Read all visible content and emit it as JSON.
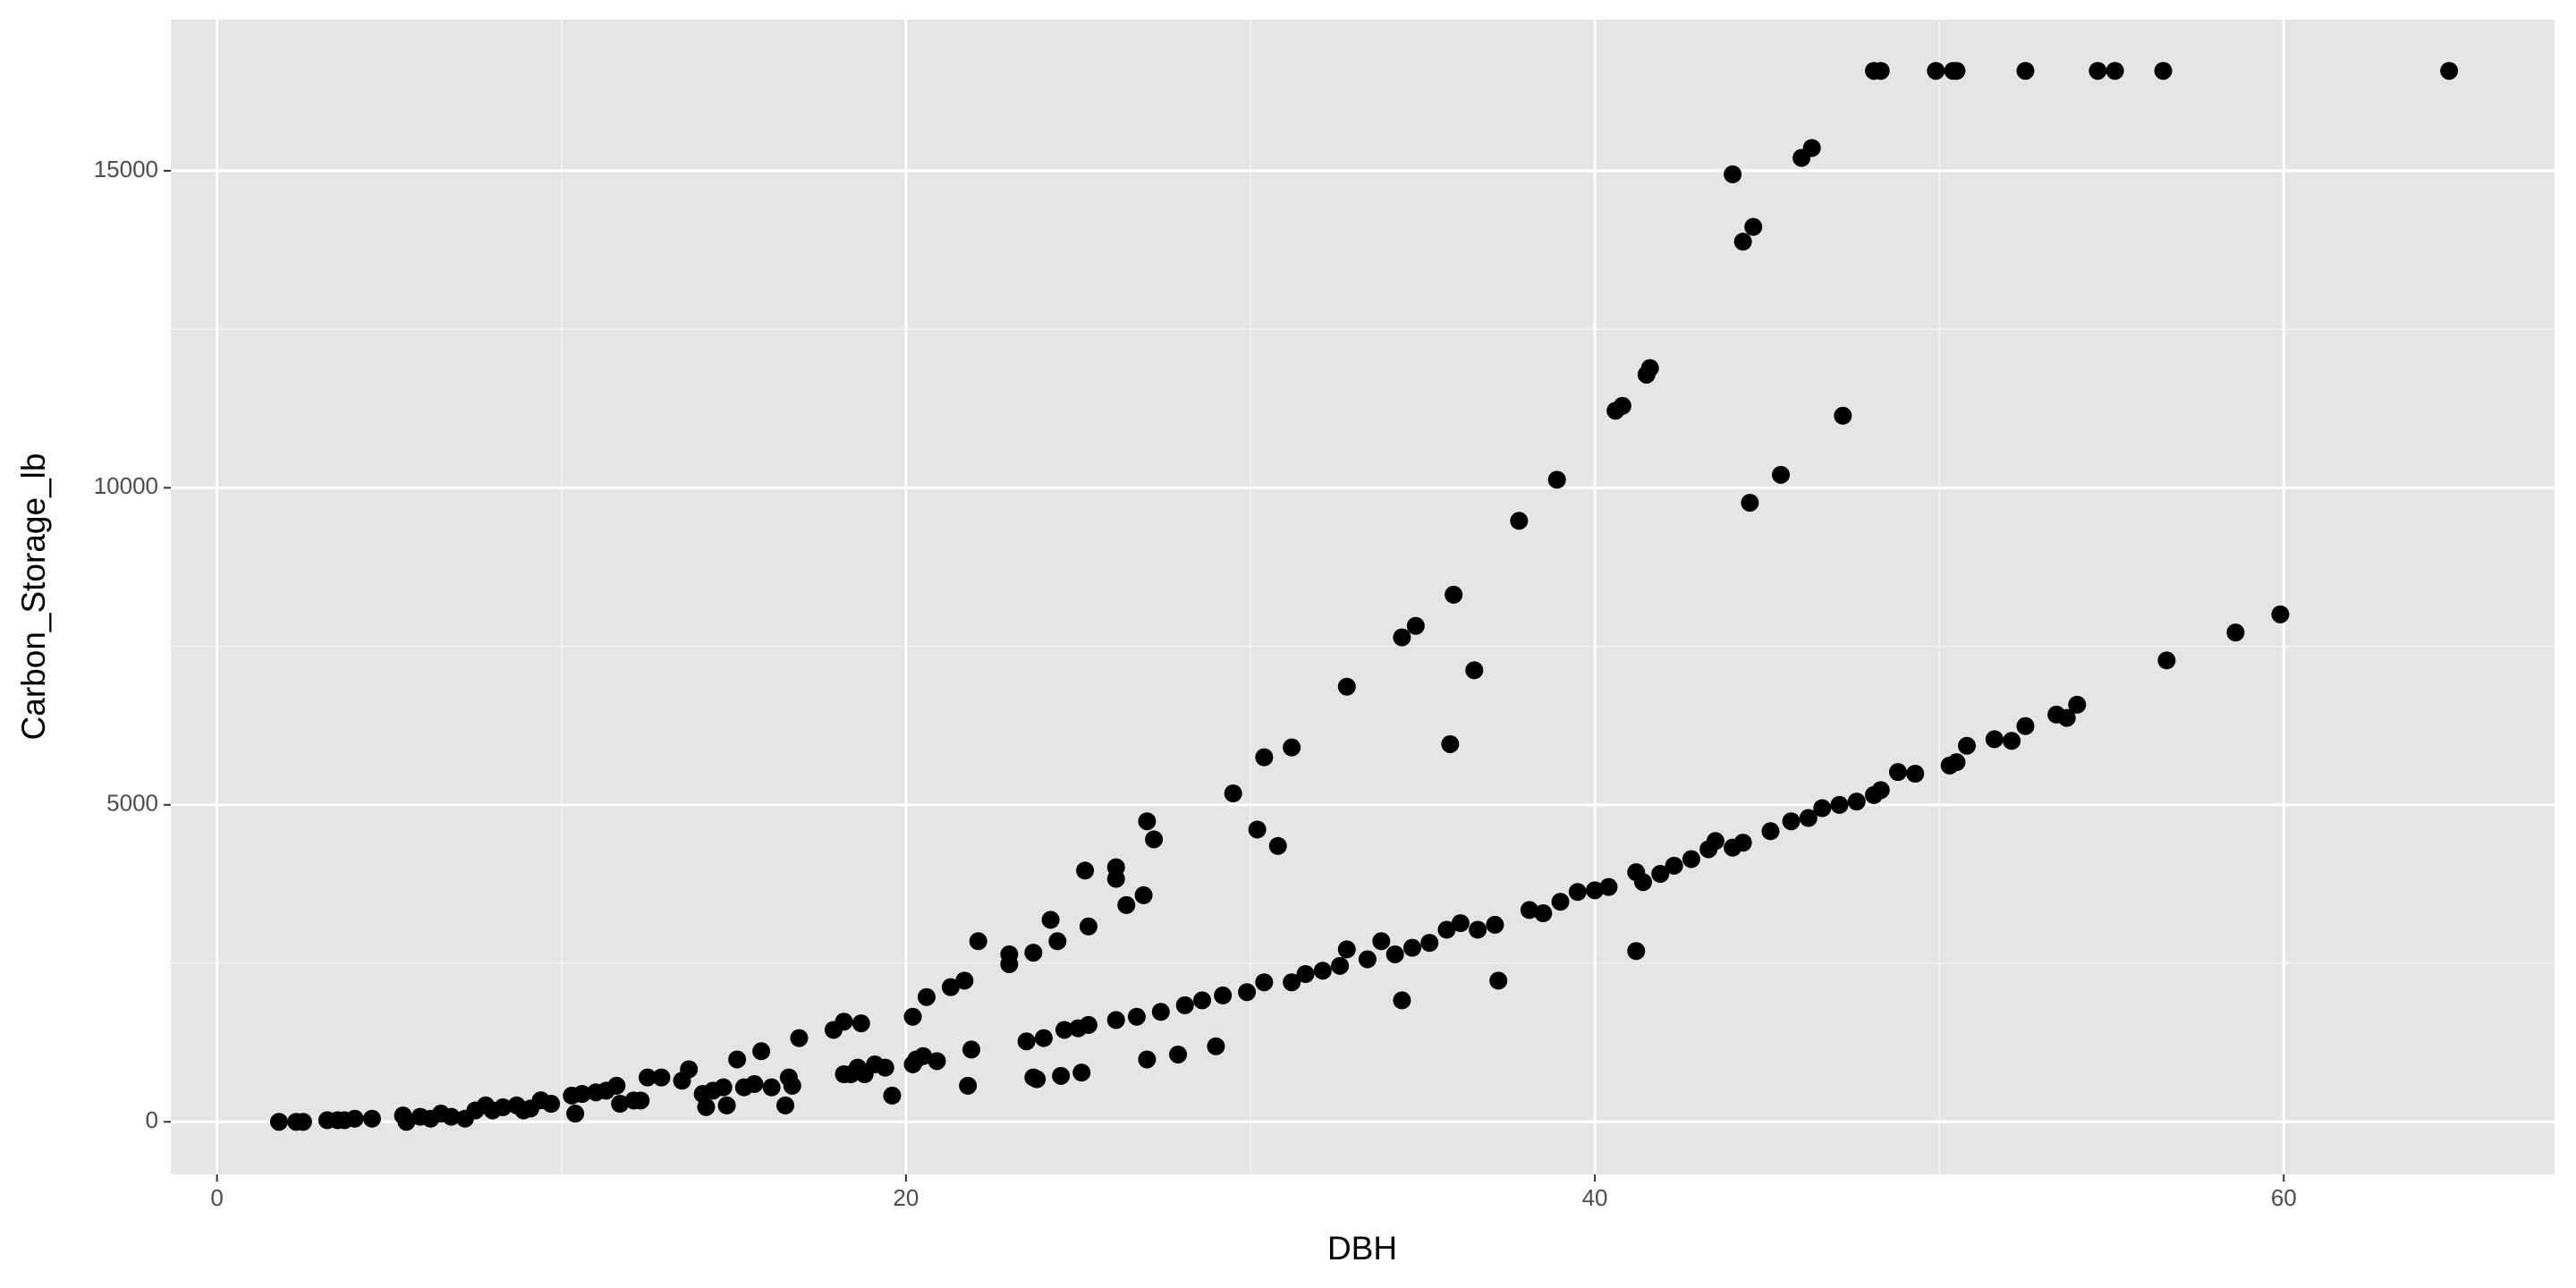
{
  "chart_data": {
    "type": "scatter",
    "x_label": "DBH",
    "y_label": "Carbon_Storage_lb",
    "x": [
      1.8,
      2.3,
      2.5,
      3.2,
      3.5,
      3.7,
      4.0,
      4.5,
      5.4,
      5.5,
      5.9,
      6.2,
      6.5,
      6.8,
      7.2,
      7.5,
      7.8,
      8.0,
      8.3,
      8.7,
      8.9,
      9.1,
      9.4,
      9.7,
      10.3,
      10.4,
      10.6,
      11.0,
      11.3,
      11.6,
      11.7,
      12.1,
      12.3,
      12.5,
      12.9,
      13.5,
      13.7,
      14.1,
      14.2,
      14.4,
      14.7,
      14.8,
      15.1,
      15.3,
      15.6,
      15.8,
      16.1,
      16.5,
      16.6,
      16.7,
      16.9,
      17.9,
      18.2,
      18.2,
      18.4,
      18.6,
      18.7,
      18.8,
      19.1,
      19.4,
      19.6,
      20.2,
      20.2,
      20.3,
      20.5,
      20.6,
      20.9,
      21.3,
      21.7,
      21.8,
      21.9,
      22.1,
      23.0,
      23.0,
      23.5,
      23.7,
      23.7,
      23.8,
      24.0,
      24.2,
      24.4,
      24.5,
      24.6,
      25.0,
      25.1,
      25.2,
      25.3,
      25.3,
      26.1,
      26.1,
      26.1,
      26.4,
      26.7,
      26.9,
      27.0,
      27.0,
      27.2,
      27.4,
      27.9,
      28.1,
      28.6,
      29.0,
      29.2,
      29.5,
      29.9,
      30.2,
      30.4,
      30.4,
      30.8,
      31.2,
      31.2,
      31.6,
      32.1,
      32.6,
      32.8,
      32.8,
      33.4,
      33.8,
      34.2,
      34.4,
      34.4,
      34.7,
      34.8,
      35.2,
      35.7,
      35.8,
      35.9,
      36.1,
      36.5,
      36.6,
      37.1,
      37.2,
      37.8,
      38.1,
      38.5,
      38.9,
      39.0,
      39.5,
      40.0,
      40.4,
      40.6,
      40.8,
      41.2,
      41.2,
      41.4,
      41.5,
      41.6,
      41.9,
      42.3,
      42.8,
      43.3,
      43.5,
      44.0,
      44.0,
      44.3,
      44.3,
      44.6,
      44.5,
      45.1,
      45.4,
      45.7,
      46.0,
      46.3,
      46.2,
      46.6,
      47.1,
      47.2,
      47.6,
      48.1,
      48.3,
      48.1,
      48.3,
      48.8,
      49.3,
      49.9,
      50.4,
      50.5,
      50.3,
      50.5,
      50.8,
      51.6,
      52.1,
      52.5,
      52.5,
      53.4,
      53.7,
      54.0,
      54.6,
      55.1,
      56.5,
      56.6,
      58.6,
      59.9,
      64.8
    ],
    "y": [
      0,
      0,
      0,
      26,
      26,
      26,
      50,
      50,
      100,
      0,
      80,
      50,
      130,
      80,
      50,
      180,
      260,
      180,
      230,
      260,
      180,
      210,
      340,
      285,
      414,
      130,
      440,
      466,
      492,
      570,
      285,
      337,
      337,
      700,
      700,
      648,
      829,
      440,
      233,
      492,
      544,
      259,
      984,
      544,
      596,
      1114,
      544,
      259,
      700,
      570,
      1321,
      1450,
      1580,
      751,
      751,
      855,
      1554,
      751,
      907,
      855,
      414,
      907,
      1658,
      984,
      1036,
      1968,
      958,
      2124,
      2227,
      570,
      1140,
      2849,
      2642,
      2486,
      1269,
      700,
      2668,
      673,
      1321,
      3186,
      2849,
      725,
      1450,
      1476,
      777,
      3963,
      3082,
      1528,
      4015,
      3833,
      1606,
      3419,
      1658,
      3574,
      984,
      4740,
      4455,
      1735,
      1062,
      1839,
      1916,
      1191,
      1994,
      5180,
      2046,
      4610,
      2201,
      5750,
      4351,
      5905,
      2201,
      2331,
      2383,
      2460,
      6863,
      2720,
      2564,
      2849,
      2642,
      7641,
      1916,
      2745,
      7822,
      2823,
      3030,
      5957,
      8314,
      3134,
      7122,
      3030,
      3108,
      2227,
      9479,
      3341,
      3290,
      10127,
      3471,
      3626,
      3652,
      3704,
      11215,
      11292,
      2694,
      3937,
      3781,
      11785,
      11888,
      3911,
      4040,
      4144,
      4299,
      4429,
      14944,
      4325,
      4403,
      13882,
      14115,
      9764,
      4584,
      10205,
      4740,
      15203,
      15359,
      4792,
      4947,
      4999,
      11137,
      5051,
      5154,
      5232,
      16576,
      16576,
      5517,
      5491,
      16576,
      16576,
      16576,
      5620,
      5672,
      5931,
      6035,
      6009,
      16576,
      6242,
      6423,
      6371,
      6579,
      16576,
      16576,
      16576,
      7278,
      7718,
      8003,
      16576
    ],
    "xlim": [
      -1.34,
      67.86
    ],
    "ylim": [
      -829,
      17383
    ],
    "xticks": [
      0,
      20,
      40,
      60
    ],
    "yticks": [
      0,
      5000,
      10000,
      15000
    ],
    "minor_xticks": [
      10,
      30,
      50
    ],
    "minor_yticks": [
      2500,
      7500,
      12500
    ],
    "color": "#000000",
    "grid": true,
    "background": "#e5e5e5"
  }
}
